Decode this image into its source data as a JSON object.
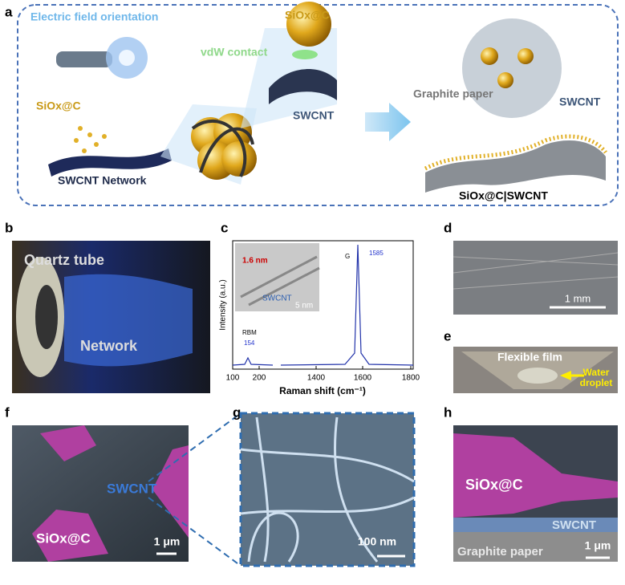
{
  "panels": {
    "a": {
      "label": "a",
      "electric_field": "Electric field orientation",
      "siox_left": "SiOx@C",
      "vdw": "vdW contact",
      "siox_top": "SiOx@C",
      "swcnt_mid": "SWCNT",
      "network": "SWCNT Network",
      "graphite": "Graphite paper",
      "swcnt_right": "SWCNT",
      "composite": "SiOx@C|SWCNT"
    },
    "b": {
      "label": "b",
      "quartz": "Quartz tube",
      "network": "Network"
    },
    "c": {
      "label": "c",
      "inset_width": "1.6 nm",
      "inset_swcnt": "SWCNT",
      "inset_scale": "5 nm",
      "rbm": "RBM",
      "rbm_peak": "154",
      "g": "G",
      "g_peak": "1585",
      "ylabel": "Intensity (a.u.)",
      "xlabel": "Raman shift (cm⁻¹)",
      "xticks": [
        100,
        200,
        1400,
        1600,
        1800
      ]
    },
    "d": {
      "label": "d",
      "scale": "1 mm"
    },
    "e": {
      "label": "e",
      "film": "Flexible film",
      "droplet": "Water droplet"
    },
    "f": {
      "label": "f",
      "swcnt": "SWCNT",
      "siox": "SiOx@C",
      "scale": "1 μm"
    },
    "g": {
      "label": "g",
      "scale": "100 nm"
    },
    "h": {
      "label": "h",
      "siox": "SiOx@C",
      "swcnt": "SWCNT",
      "graphite": "Graphite paper",
      "scale": "1 μm"
    }
  }
}
